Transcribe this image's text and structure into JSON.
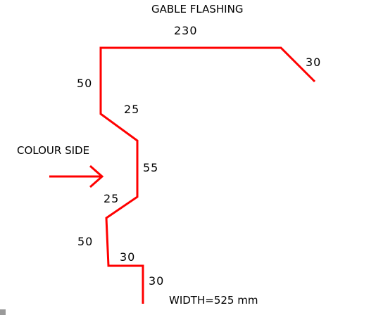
{
  "title": "GABLE FLASHING",
  "colour_side_label": "COLOUR SIDE",
  "width_label": "WIDTH=525 mm",
  "dimensions": {
    "top": "230",
    "drip_right": "30",
    "upstand": "50",
    "bend_upper": "25",
    "vertical_mid": "55",
    "bend_lower": "25",
    "lower_leg": "50",
    "foot": "30",
    "bottom_drop": "30"
  },
  "colors": {
    "profile": "#ff0000",
    "arrow": "#ff0000",
    "text": "#000000"
  }
}
